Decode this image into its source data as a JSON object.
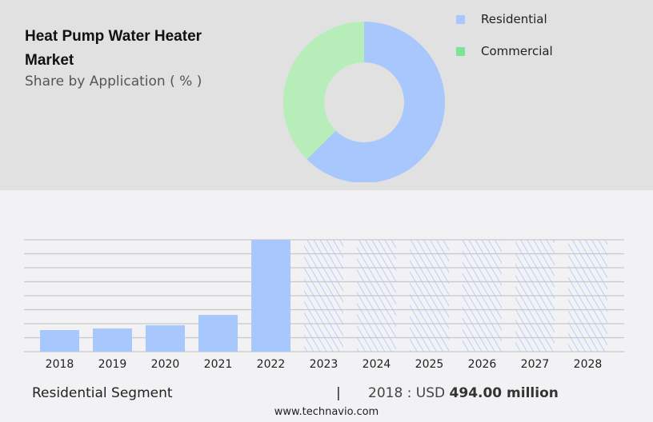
{
  "header": {
    "title": "Heat Pump Water Heater Market",
    "subtitle": "Share by Application ( % )"
  },
  "chart_data": [
    {
      "type": "pie",
      "donut": true,
      "categories": [
        "Residential",
        "Commercial"
      ],
      "values": [
        62.5,
        37.5
      ],
      "colors": [
        "#a8c8fd",
        "#b6edb9"
      ],
      "legend": {
        "placement": "right",
        "items": [
          {
            "label": "Residential",
            "color": "#a8c8fd"
          },
          {
            "label": "Commercial",
            "color": "#7be39a"
          }
        ]
      }
    },
    {
      "type": "bar",
      "categories": [
        "2018",
        "2019",
        "2020",
        "2021",
        "2022",
        "2023",
        "2024",
        "2025",
        "2026",
        "2027",
        "2028"
      ],
      "values": [
        494,
        531,
        604,
        841,
        2561,
        null,
        null,
        null,
        null,
        null,
        null
      ],
      "forecast_categories": [
        "2023",
        "2024",
        "2025",
        "2026",
        "2027",
        "2028"
      ],
      "forecast_style": "hatched",
      "color": "#a8c8fd",
      "grid": true,
      "ylim": [
        0,
        2561
      ]
    }
  ],
  "footer": {
    "segment": "Residential Segment",
    "separator": "|",
    "year_value": "2018 : USD",
    "value": "494.00 million",
    "site": "www.technavio.com"
  }
}
